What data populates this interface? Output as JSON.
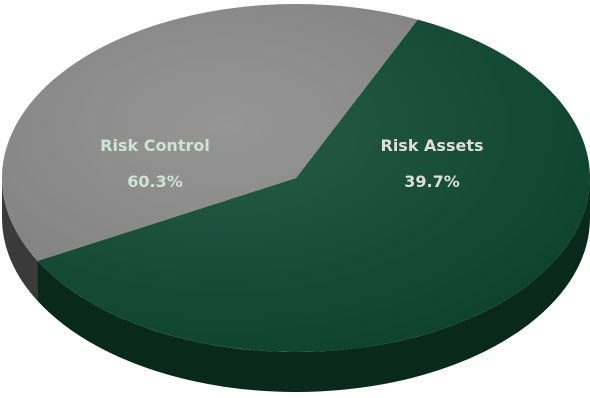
{
  "chart_data": {
    "type": "pie",
    "style": "3d",
    "slices": [
      {
        "label": "Risk Control",
        "value": 60.3,
        "value_label": "60.3%",
        "color": "#0f4a33",
        "label_color": "#cfe3d6"
      },
      {
        "label": "Risk Assets",
        "value": 39.7,
        "value_label": "39.7%",
        "color": "#8a8a8a",
        "label_color": "#dedede"
      }
    ]
  }
}
